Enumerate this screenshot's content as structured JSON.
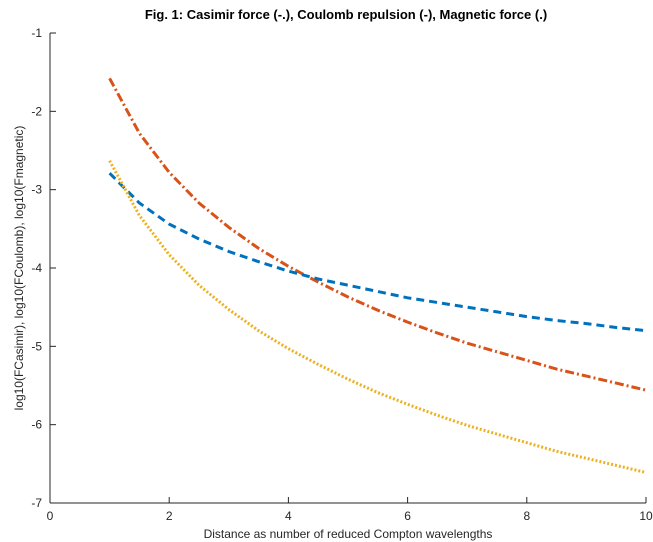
{
  "chart_data": {
    "type": "line",
    "title": "Fig. 1: Casimir force (-.), Coulomb repulsion (-), Magnetic force (.)",
    "xlabel": "Distance as number of reduced Compton wavelengths",
    "ylabel": "log10(FCasimir), log10(FCoulomb), log10(Fmagnetic)",
    "xlim": [
      0,
      10
    ],
    "ylim": [
      -7,
      -1
    ],
    "x_ticks": [
      "0",
      "2",
      "4",
      "6",
      "8",
      "10"
    ],
    "y_ticks": [
      "-7",
      "-6",
      "-5",
      "-4",
      "-3",
      "-2",
      "-1"
    ],
    "grid": false,
    "x": [
      1,
      1.5,
      2,
      2.5,
      3,
      3.5,
      4,
      4.5,
      5,
      5.5,
      6,
      6.5,
      7,
      7.5,
      8,
      8.5,
      9,
      9.5,
      10
    ],
    "series": [
      {
        "style": "dash-dot",
        "color": "#D95319",
        "values": [
          -1.58,
          -2.28,
          -2.78,
          -3.17,
          -3.48,
          -3.75,
          -3.98,
          -4.18,
          -4.37,
          -4.54,
          -4.69,
          -4.83,
          -4.96,
          -5.07,
          -5.18,
          -5.29,
          -5.38,
          -5.47,
          -5.56
        ]
      },
      {
        "style": "dashed",
        "color": "#0072BD",
        "values": [
          -2.79,
          -3.17,
          -3.44,
          -3.63,
          -3.79,
          -3.92,
          -4.04,
          -4.14,
          -4.22,
          -4.3,
          -4.38,
          -4.44,
          -4.5,
          -4.56,
          -4.62,
          -4.67,
          -4.71,
          -4.76,
          -4.8
        ]
      },
      {
        "style": "dotted",
        "color": "#EDB120",
        "values": [
          -2.63,
          -3.33,
          -3.83,
          -4.22,
          -4.53,
          -4.8,
          -5.03,
          -5.23,
          -5.42,
          -5.59,
          -5.74,
          -5.88,
          -6.01,
          -6.12,
          -6.23,
          -6.34,
          -6.43,
          -6.52,
          -6.61
        ]
      }
    ]
  }
}
